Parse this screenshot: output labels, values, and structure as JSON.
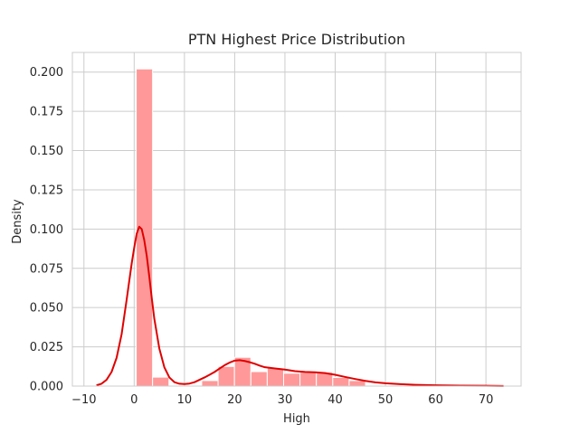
{
  "chart_data": {
    "type": "bar",
    "title": "PTN Highest Price Distribution",
    "xlabel": "High",
    "ylabel": "Density",
    "xlim": [
      -12.3,
      77.0
    ],
    "ylim": [
      0,
      0.2125
    ],
    "grid": true,
    "x_ticks": [
      -10,
      0,
      10,
      20,
      30,
      40,
      50,
      60,
      70
    ],
    "y_ticks": [
      0.0,
      0.025,
      0.05,
      0.075,
      0.1,
      0.125,
      0.15,
      0.175,
      0.2
    ],
    "x_tick_labels": [
      "−10",
      "0",
      "10",
      "20",
      "30",
      "40",
      "50",
      "60",
      "70"
    ],
    "y_tick_labels": [
      "0.000",
      "0.025",
      "0.050",
      "0.075",
      "0.100",
      "0.125",
      "0.150",
      "0.175",
      "0.200"
    ],
    "histogram": {
      "color": "#ff9999",
      "edge_color": "#ffffff",
      "bin_edges": [
        0.4,
        3.66,
        6.92,
        10.18,
        13.44,
        16.7,
        19.96,
        23.22,
        26.48,
        29.74,
        33.0,
        36.26,
        39.52,
        42.78,
        46.04
      ],
      "values": [
        0.202,
        0.0057,
        0.0,
        0.0,
        0.0035,
        0.0125,
        0.0183,
        0.0092,
        0.0115,
        0.0082,
        0.0088,
        0.0088,
        0.0055,
        0.0035
      ]
    },
    "kde": {
      "color": "#e00000",
      "x": [
        -7.5,
        -6.5,
        -5.5,
        -4.5,
        -3.5,
        -2.5,
        -1.5,
        -0.5,
        0.0,
        0.5,
        1.0,
        1.5,
        2.0,
        2.5,
        3.0,
        3.5,
        4.0,
        5.0,
        6.0,
        7.0,
        8.0,
        9.0,
        10.0,
        11.0,
        12.0,
        13.0,
        14.0,
        15.0,
        16.0,
        17.0,
        18.0,
        19.0,
        20.0,
        21.0,
        22.0,
        23.0,
        24.0,
        25.0,
        26.0,
        28.0,
        30.0,
        32.0,
        34.0,
        36.0,
        38.0,
        40.0,
        42.0,
        44.0,
        46.0,
        48.0,
        50.0,
        53.0,
        56.0,
        60.0,
        65.0,
        70.0,
        73.5
      ],
      "y": [
        0.0005,
        0.0015,
        0.004,
        0.009,
        0.018,
        0.033,
        0.055,
        0.078,
        0.088,
        0.097,
        0.1015,
        0.1,
        0.093,
        0.083,
        0.07,
        0.056,
        0.043,
        0.024,
        0.012,
        0.0055,
        0.0025,
        0.0015,
        0.0013,
        0.0016,
        0.0025,
        0.004,
        0.0055,
        0.0072,
        0.009,
        0.0112,
        0.0133,
        0.015,
        0.0162,
        0.0165,
        0.016,
        0.0152,
        0.0142,
        0.013,
        0.012,
        0.0112,
        0.0105,
        0.0095,
        0.009,
        0.0088,
        0.0083,
        0.0072,
        0.0058,
        0.0045,
        0.0033,
        0.0024,
        0.0018,
        0.0012,
        0.0008,
        0.0005,
        0.0003,
        0.0002,
        0.0001
      ]
    }
  }
}
